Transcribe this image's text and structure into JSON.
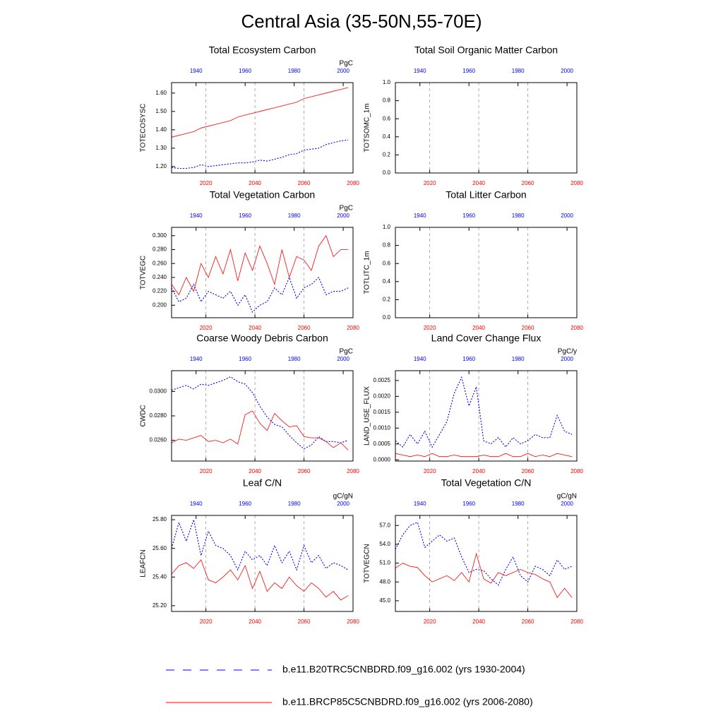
{
  "title": "Central Asia (35-50N,55-70E)",
  "legend": [
    {
      "name": "b.e11.B20TRC5CNBDRD.f09_g16.002 (yrs 1930-2004)",
      "color": "#0000ff",
      "line_style": "dashed"
    },
    {
      "name": "b.e11.BRCP85C5CNBDRD.f09_g16.002 (yrs 2006-2080)",
      "color": "#ff0000",
      "line_style": "solid"
    }
  ],
  "chart_data": [
    {
      "type": "line",
      "title": "Total Ecosystem Carbon",
      "ylabel": "TOTECOSYSC",
      "units": "PgC",
      "xlim": [
        2006,
        2080
      ],
      "xticks": [
        2020,
        2040,
        2060,
        2080
      ],
      "x2lim": [
        1930,
        2004
      ],
      "x2ticks": [
        1940,
        1960,
        1980,
        2000
      ],
      "ylim": [
        1.165,
        1.657
      ],
      "yticks": [
        {
          "value": 1.2,
          "label": "1.20"
        },
        {
          "value": 1.3,
          "label": "1.30"
        },
        {
          "value": 1.4,
          "label": "1.40"
        },
        {
          "value": 1.5,
          "label": "1.50"
        },
        {
          "value": 1.6,
          "label": "1.60"
        }
      ],
      "grid": true,
      "series": [
        {
          "color": "#0000ff",
          "line_style": "dashed",
          "xaxis": "x2",
          "x": [
            1930,
            1933,
            1936,
            1939,
            1942,
            1945,
            1948,
            1951,
            1954,
            1957,
            1960,
            1963,
            1966,
            1969,
            1972,
            1975,
            1978,
            1981,
            1984,
            1987,
            1990,
            1993,
            1996,
            1999,
            2002
          ],
          "values": [
            1.195,
            1.19,
            1.19,
            1.195,
            1.21,
            1.2,
            1.205,
            1.21,
            1.215,
            1.22,
            1.22,
            1.225,
            1.235,
            1.23,
            1.24,
            1.25,
            1.265,
            1.27,
            1.29,
            1.295,
            1.3,
            1.32,
            1.33,
            1.34,
            1.345
          ]
        },
        {
          "color": "#ff0000",
          "line_style": "solid",
          "xaxis": "x",
          "x": [
            2006,
            2009,
            2012,
            2015,
            2018,
            2021,
            2024,
            2027,
            2030,
            2033,
            2036,
            2039,
            2042,
            2045,
            2048,
            2051,
            2054,
            2057,
            2060,
            2063,
            2066,
            2069,
            2072,
            2075,
            2078
          ],
          "values": [
            1.36,
            1.37,
            1.38,
            1.39,
            1.41,
            1.42,
            1.43,
            1.44,
            1.45,
            1.47,
            1.48,
            1.49,
            1.5,
            1.51,
            1.52,
            1.53,
            1.54,
            1.55,
            1.57,
            1.58,
            1.59,
            1.6,
            1.61,
            1.62,
            1.63
          ]
        }
      ]
    },
    {
      "type": "line",
      "title": "Total Soil Organic Matter Carbon",
      "ylabel": "TOTSOMC_1m",
      "xlim": [
        2006,
        2080
      ],
      "xticks": [
        2020,
        2040,
        2060,
        2080
      ],
      "x2lim": [
        1930,
        2004
      ],
      "x2ticks": [
        1940,
        1960,
        1980,
        2000
      ],
      "ylim": [
        0,
        1
      ],
      "yticks": [
        {
          "value": 0,
          "label": "0.0"
        },
        0.2,
        0.4,
        0.6,
        0.8,
        {
          "value": 1,
          "label": "1.0"
        }
      ],
      "grid": true,
      "series": []
    },
    {
      "type": "line",
      "title": "Total Vegetation Carbon",
      "ylabel": "TOTVEGC",
      "units": "PgC",
      "xlim": [
        2006,
        2080
      ],
      "xticks": [
        2020,
        2040,
        2060,
        2080
      ],
      "x2lim": [
        1930,
        2004
      ],
      "x2ticks": [
        1940,
        1960,
        1980,
        2000
      ],
      "ylim": [
        0.182,
        0.312
      ],
      "yticks": [
        {
          "value": 0.2,
          "label": "0.200"
        },
        {
          "value": 0.22,
          "label": "0.220"
        },
        {
          "value": 0.24,
          "label": "0.240"
        },
        {
          "value": 0.26,
          "label": "0.260"
        },
        {
          "value": 0.28,
          "label": "0.280"
        },
        {
          "value": 0.3,
          "label": "0.300"
        }
      ],
      "grid": true,
      "series": [
        {
          "color": "#0000ff",
          "line_style": "dashed",
          "xaxis": "x2",
          "x": [
            1930,
            1933,
            1936,
            1939,
            1942,
            1945,
            1948,
            1951,
            1954,
            1957,
            1960,
            1963,
            1966,
            1969,
            1972,
            1975,
            1978,
            1981,
            1984,
            1987,
            1990,
            1993,
            1996,
            1999,
            2002
          ],
          "values": [
            0.225,
            0.205,
            0.21,
            0.23,
            0.205,
            0.22,
            0.215,
            0.21,
            0.22,
            0.2,
            0.215,
            0.19,
            0.2,
            0.205,
            0.225,
            0.215,
            0.24,
            0.21,
            0.225,
            0.23,
            0.24,
            0.215,
            0.22,
            0.22,
            0.225
          ]
        },
        {
          "color": "#ff0000",
          "line_style": "solid",
          "xaxis": "x",
          "x": [
            2006,
            2009,
            2012,
            2015,
            2018,
            2021,
            2024,
            2027,
            2030,
            2033,
            2036,
            2039,
            2042,
            2045,
            2048,
            2051,
            2054,
            2057,
            2060,
            2063,
            2066,
            2069,
            2072,
            2075,
            2078
          ],
          "values": [
            0.23,
            0.215,
            0.24,
            0.22,
            0.26,
            0.24,
            0.27,
            0.245,
            0.28,
            0.235,
            0.275,
            0.25,
            0.285,
            0.26,
            0.23,
            0.28,
            0.24,
            0.27,
            0.265,
            0.25,
            0.285,
            0.3,
            0.27,
            0.28,
            0.28
          ]
        }
      ]
    },
    {
      "type": "line",
      "title": "Total Litter Carbon",
      "ylabel": "TOTLITC_1m",
      "xlim": [
        2006,
        2080
      ],
      "xticks": [
        2020,
        2040,
        2060,
        2080
      ],
      "x2lim": [
        1930,
        2004
      ],
      "x2ticks": [
        1940,
        1960,
        1980,
        2000
      ],
      "ylim": [
        0,
        1
      ],
      "yticks": [
        {
          "value": 0,
          "label": "0.0"
        },
        0.2,
        0.4,
        0.6,
        0.8,
        {
          "value": 1,
          "label": "1.0"
        }
      ],
      "grid": true,
      "series": []
    },
    {
      "type": "line",
      "title": "Coarse Woody Debris Carbon",
      "ylabel": "CWDC",
      "units": "PgC",
      "xlim": [
        2006,
        2080
      ],
      "xticks": [
        2020,
        2040,
        2060,
        2080
      ],
      "x2lim": [
        1930,
        2004
      ],
      "x2ticks": [
        1940,
        1960,
        1980,
        2000
      ],
      "ylim": [
        0.0243,
        0.0317
      ],
      "yticks": [
        {
          "value": 0.026,
          "label": "0.0260"
        },
        {
          "value": 0.028,
          "label": "0.0280"
        },
        {
          "value": 0.03,
          "label": "0.0300"
        }
      ],
      "grid": true,
      "series": [
        {
          "color": "#0000ff",
          "line_style": "dashed",
          "xaxis": "x2",
          "x": [
            1930,
            1933,
            1936,
            1939,
            1942,
            1945,
            1948,
            1951,
            1954,
            1957,
            1960,
            1963,
            1966,
            1969,
            1972,
            1975,
            1978,
            1981,
            1984,
            1987,
            1990,
            1993,
            1996,
            1999,
            2002
          ],
          "values": [
            0.0301,
            0.0303,
            0.0305,
            0.0302,
            0.0306,
            0.0305,
            0.0307,
            0.0309,
            0.0312,
            0.0308,
            0.0306,
            0.0299,
            0.0288,
            0.0279,
            0.0273,
            0.0271,
            0.0264,
            0.0258,
            0.0253,
            0.0256,
            0.0263,
            0.0259,
            0.0259,
            0.0258,
            0.026
          ]
        },
        {
          "color": "#ff0000",
          "line_style": "solid",
          "xaxis": "x",
          "x": [
            2006,
            2009,
            2012,
            2015,
            2018,
            2021,
            2024,
            2027,
            2030,
            2033,
            2036,
            2039,
            2042,
            2045,
            2048,
            2051,
            2054,
            2057,
            2060,
            2063,
            2066,
            2069,
            2072,
            2075,
            2078
          ],
          "values": [
            0.0258,
            0.0261,
            0.026,
            0.0262,
            0.0264,
            0.0259,
            0.026,
            0.0258,
            0.0261,
            0.0257,
            0.0281,
            0.0284,
            0.0274,
            0.0268,
            0.0282,
            0.0276,
            0.0271,
            0.0272,
            0.0263,
            0.0262,
            0.0262,
            0.0259,
            0.0254,
            0.0258,
            0.0252
          ]
        }
      ]
    },
    {
      "type": "line",
      "title": "Land Cover Change Flux",
      "ylabel": "LAND_USE_FLUX",
      "units": "PgC/y",
      "xlim": [
        2006,
        2080
      ],
      "xticks": [
        2020,
        2040,
        2060,
        2080
      ],
      "x2lim": [
        1930,
        2004
      ],
      "x2ticks": [
        1940,
        1960,
        1980,
        2000
      ],
      "ylim": [
        -4e-05,
        0.00281
      ],
      "yticks": [
        {
          "value": 0,
          "label": "0.0000"
        },
        0.0005,
        {
          "value": 0.001,
          "label": "0.0010"
        },
        0.0015,
        {
          "value": 0.002,
          "label": "0.0020"
        },
        0.0025
      ],
      "grid": true,
      "series": [
        {
          "color": "#0000ff",
          "line_style": "dashed",
          "xaxis": "x2",
          "x": [
            1930,
            1933,
            1936,
            1939,
            1942,
            1945,
            1948,
            1951,
            1954,
            1957,
            1960,
            1963,
            1966,
            1969,
            1972,
            1975,
            1978,
            1981,
            1984,
            1987,
            1990,
            1993,
            1996,
            1999,
            2002
          ],
          "values": [
            0.0006,
            0.0004,
            0.0008,
            0.0005,
            0.0009,
            0.0004,
            0.0008,
            0.0012,
            0.0021,
            0.0026,
            0.0017,
            0.0023,
            0.0006,
            0.0005,
            0.0007,
            0.0004,
            0.0007,
            0.0005,
            0.0006,
            0.0008,
            0.0007,
            0.0007,
            0.0014,
            0.0009,
            0.0008
          ]
        },
        {
          "color": "#ff0000",
          "line_style": "solid",
          "xaxis": "x",
          "x": [
            2006,
            2009,
            2012,
            2015,
            2018,
            2021,
            2024,
            2027,
            2030,
            2033,
            2036,
            2039,
            2042,
            2045,
            2048,
            2051,
            2054,
            2057,
            2060,
            2063,
            2066,
            2069,
            2072,
            2075,
            2078
          ],
          "values": [
            0.0002,
            0.00015,
            0.0001,
            0.00015,
            0.0001,
            0.0002,
            0.0001,
            0.0001,
            0.00015,
            0.0001,
            0.0001,
            0.0001,
            0.00015,
            0.0001,
            0.0001,
            0.0002,
            0.0001,
            0.0001,
            0.0002,
            0.0001,
            0.00015,
            0.0001,
            0.0002,
            0.00015,
            0.0001
          ]
        }
      ]
    },
    {
      "type": "line",
      "title": "Leaf C/N",
      "ylabel": "LEAFCN",
      "units": "gC/gN",
      "xlim": [
        2006,
        2080
      ],
      "xticks": [
        2020,
        2040,
        2060,
        2080
      ],
      "x2lim": [
        1930,
        2004
      ],
      "x2ticks": [
        1940,
        1960,
        1980,
        2000
      ],
      "ylim": [
        25.16,
        25.83
      ],
      "yticks": [
        {
          "value": 25.2,
          "label": "25.20"
        },
        {
          "value": 25.4,
          "label": "25.40"
        },
        {
          "value": 25.6,
          "label": "25.60"
        },
        {
          "value": 25.8,
          "label": "25.80"
        }
      ],
      "grid": true,
      "series": [
        {
          "color": "#0000ff",
          "line_style": "dashed",
          "xaxis": "x2",
          "x": [
            1930,
            1933,
            1936,
            1939,
            1942,
            1945,
            1948,
            1951,
            1954,
            1957,
            1960,
            1963,
            1966,
            1969,
            1972,
            1975,
            1978,
            1981,
            1984,
            1987,
            1990,
            1993,
            1996,
            1999,
            2002
          ],
          "values": [
            25.6,
            25.78,
            25.65,
            25.8,
            25.55,
            25.72,
            25.62,
            25.6,
            25.55,
            25.45,
            25.58,
            25.52,
            25.55,
            25.48,
            25.62,
            25.5,
            25.58,
            25.45,
            25.62,
            25.5,
            25.55,
            25.46,
            25.5,
            25.48,
            25.45
          ]
        },
        {
          "color": "#ff0000",
          "line_style": "solid",
          "xaxis": "x",
          "x": [
            2006,
            2009,
            2012,
            2015,
            2018,
            2021,
            2024,
            2027,
            2030,
            2033,
            2036,
            2039,
            2042,
            2045,
            2048,
            2051,
            2054,
            2057,
            2060,
            2063,
            2066,
            2069,
            2072,
            2075,
            2078
          ],
          "values": [
            25.42,
            25.48,
            25.5,
            25.46,
            25.52,
            25.38,
            25.36,
            25.4,
            25.45,
            25.38,
            25.48,
            25.32,
            25.44,
            25.3,
            25.36,
            25.32,
            25.4,
            25.34,
            25.3,
            25.36,
            25.32,
            25.26,
            25.3,
            25.24,
            25.27
          ]
        }
      ]
    },
    {
      "type": "line",
      "title": "Total Vegetation C/N",
      "ylabel": "TOTVEGCN",
      "units": "gC/gN",
      "xlim": [
        2006,
        2080
      ],
      "xticks": [
        2020,
        2040,
        2060,
        2080
      ],
      "x2lim": [
        1930,
        2004
      ],
      "x2ticks": [
        1940,
        1960,
        1980,
        2000
      ],
      "ylim": [
        43.3,
        58.6
      ],
      "yticks": [
        {
          "value": 45,
          "label": "45.0"
        },
        {
          "value": 48,
          "label": "48.0"
        },
        {
          "value": 51,
          "label": "51.0"
        },
        {
          "value": 54,
          "label": "54.0"
        },
        {
          "value": 57,
          "label": "57.0"
        }
      ],
      "grid": true,
      "series": [
        {
          "color": "#0000ff",
          "line_style": "dashed",
          "xaxis": "x2",
          "x": [
            1930,
            1933,
            1936,
            1939,
            1942,
            1945,
            1948,
            1951,
            1954,
            1957,
            1960,
            1963,
            1966,
            1969,
            1972,
            1975,
            1978,
            1981,
            1984,
            1987,
            1990,
            1993,
            1996,
            1999,
            2002
          ],
          "values": [
            53.2,
            55.5,
            57,
            57.5,
            53.5,
            54.5,
            55.5,
            54.5,
            55,
            52,
            49.5,
            50,
            49.8,
            48.5,
            47.5,
            50,
            52,
            49,
            48,
            50.5,
            50,
            49,
            51.5,
            50,
            50.5
          ]
        },
        {
          "color": "#ff0000",
          "line_style": "solid",
          "xaxis": "x",
          "x": [
            2006,
            2009,
            2012,
            2015,
            2018,
            2021,
            2024,
            2027,
            2030,
            2033,
            2036,
            2039,
            2042,
            2045,
            2048,
            2051,
            2054,
            2057,
            2060,
            2063,
            2066,
            2069,
            2072,
            2075,
            2078
          ],
          "values": [
            50.2,
            51,
            50.5,
            50.3,
            49,
            48,
            48.5,
            49,
            48.2,
            49.5,
            48,
            52.5,
            48.5,
            47.8,
            49.5,
            49,
            49.5,
            50,
            49.5,
            49.2,
            48.5,
            48,
            45.5,
            47,
            45.5
          ]
        }
      ]
    }
  ]
}
